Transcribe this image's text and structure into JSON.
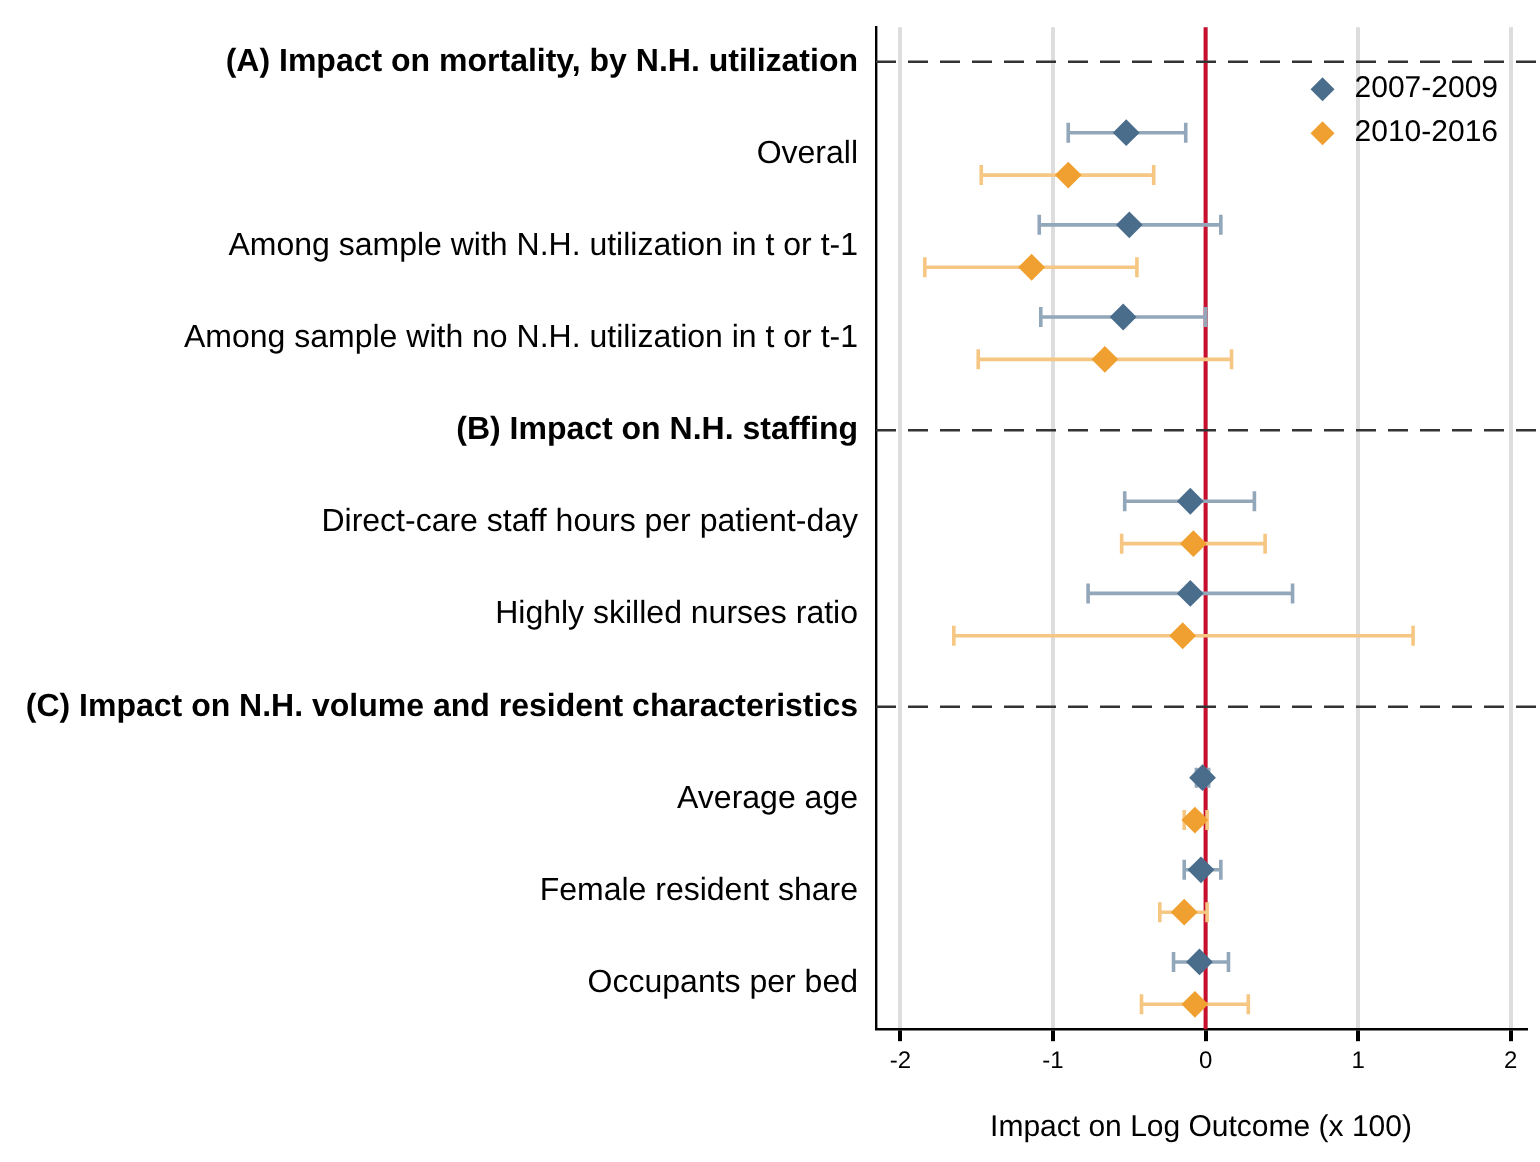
{
  "chart_data": {
    "type": "scatter",
    "orientation": "horizontal",
    "xlabel": "Impact on Log Outcome (x 100)",
    "categories": [
      "(A) Impact on mortality, by N.H. utilization",
      "Overall",
      "Among sample with N.H. utilization in t or t-1",
      "Among sample with no N.H. utilization in t or t-1",
      "(B) Impact on N.H. staffing",
      "Direct-care staff hours per patient-day",
      "Highly skilled nurses ratio",
      "(C) Impact on N.H. volume and resident characteristics",
      "Average age",
      "Female resident share",
      "Occupants per bed"
    ],
    "series": [
      {
        "name": "2007-2009",
        "color": "#4a6d8c",
        "values": [
          null,
          -0.52,
          -0.5,
          -0.54,
          null,
          -0.1,
          -0.1,
          null,
          -0.02,
          -0.03,
          -0.04
        ],
        "errors": [
          null,
          [
            -0.9,
            -0.13
          ],
          [
            -1.09,
            0.1
          ],
          [
            -1.08,
            0.0
          ],
          null,
          [
            -0.53,
            0.32
          ],
          [
            -0.77,
            0.57
          ],
          null,
          [
            -0.06,
            0.02
          ],
          [
            -0.14,
            0.1
          ],
          [
            -0.21,
            0.15
          ]
        ]
      },
      {
        "name": "2010-2016",
        "color": "#f0a030",
        "values": [
          null,
          -0.9,
          -1.14,
          -0.66,
          null,
          -0.08,
          -0.15,
          null,
          -0.07,
          -0.14,
          -0.07
        ],
        "errors": [
          null,
          [
            -1.47,
            -0.34
          ],
          [
            -1.84,
            -0.45
          ],
          [
            -1.49,
            0.17
          ],
          null,
          [
            -0.55,
            0.39
          ],
          [
            -1.65,
            1.36
          ],
          null,
          [
            -0.14,
            0.01
          ],
          [
            -0.3,
            0.01
          ],
          [
            -0.42,
            0.28
          ]
        ]
      }
    ],
    "xlim": [
      -2.16,
      2.1
    ],
    "xticks": [
      -2,
      -1,
      0,
      1,
      2
    ],
    "grid": "x",
    "legend": "top right",
    "marker": "diamond",
    "ref_lines": [
      {
        "axis": "x",
        "value": 0,
        "color": "#c8102e",
        "line_style": "solid"
      },
      {
        "axis": "y",
        "value": "(A) Impact on mortality, by N.H. utilization",
        "color": "#333333",
        "line_style": "dashed"
      },
      {
        "axis": "y",
        "value": "(B) Impact on N.H. staffing",
        "color": "#333333",
        "line_style": "dashed"
      },
      {
        "axis": "y",
        "value": "(C) Impact on N.H. volume and resident characteristics",
        "color": "#333333",
        "line_style": "dashed"
      }
    ]
  }
}
